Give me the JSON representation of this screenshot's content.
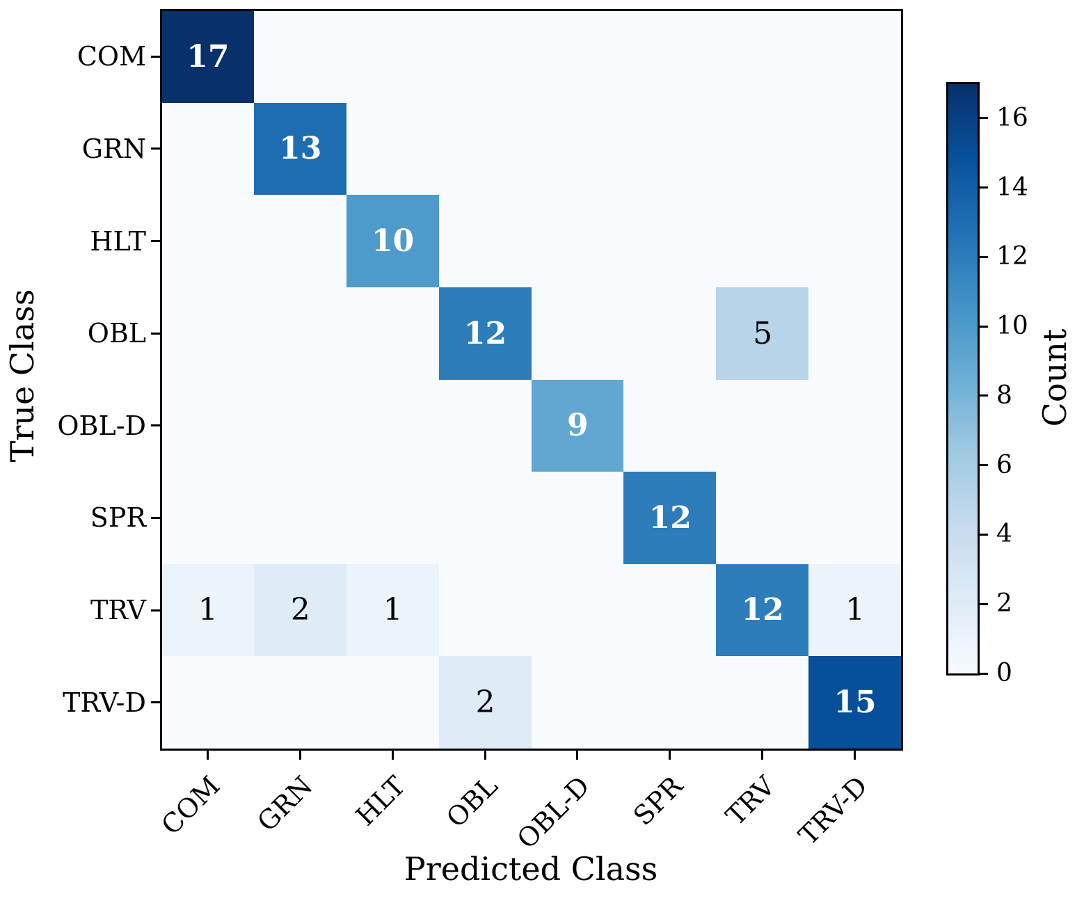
{
  "chart_data": {
    "type": "heatmap",
    "subtype": "confusion-matrix",
    "title": "",
    "xlabel": "Predicted Class",
    "ylabel": "True Class",
    "x_tick_labels": [
      "COM",
      "GRN",
      "HLT",
      "OBL",
      "OBL-D",
      "SPR",
      "TRV",
      "TRV-D"
    ],
    "y_tick_labels": [
      "COM",
      "GRN",
      "HLT",
      "OBL",
      "OBL-D",
      "SPR",
      "TRV",
      "TRV-D"
    ],
    "matrix": [
      [
        17,
        0,
        0,
        0,
        0,
        0,
        0,
        0
      ],
      [
        0,
        13,
        0,
        0,
        0,
        0,
        0,
        0
      ],
      [
        0,
        0,
        10,
        0,
        0,
        0,
        0,
        0
      ],
      [
        0,
        0,
        0,
        12,
        0,
        0,
        5,
        0
      ],
      [
        0,
        0,
        0,
        0,
        9,
        0,
        0,
        0
      ],
      [
        0,
        0,
        0,
        0,
        0,
        12,
        0,
        0
      ],
      [
        1,
        2,
        1,
        0,
        0,
        0,
        12,
        1
      ],
      [
        0,
        0,
        0,
        2,
        0,
        0,
        0,
        15
      ]
    ],
    "annotations_hide_zero": true,
    "annotation_light_text_color": "#ffffff",
    "annotation_dark_text_color": "#000000",
    "colorbar": {
      "label": "Count",
      "tick_values": [
        0,
        2,
        4,
        6,
        8,
        10,
        12,
        14,
        16
      ],
      "vmin": 0,
      "vmax": 17
    },
    "colormap": {
      "name": "Blues",
      "stops": [
        "#f7fbff",
        "#deebf7",
        "#c6dbef",
        "#9ecae1",
        "#6baed6",
        "#4292c6",
        "#2171b5",
        "#08519c",
        "#08306b"
      ]
    },
    "grid": false,
    "legend": null
  }
}
